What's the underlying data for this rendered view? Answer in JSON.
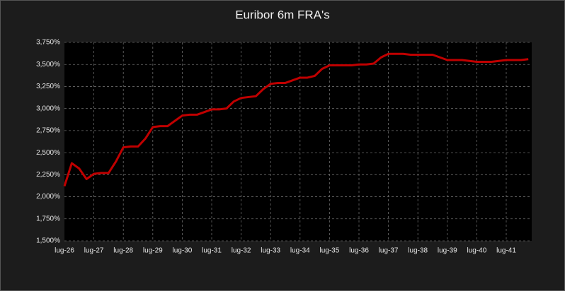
{
  "chart_data": {
    "type": "line",
    "title": "Euribor 6m FRA's",
    "categories": [
      "lug-26",
      null,
      null,
      null,
      "lug-27",
      null,
      null,
      null,
      "lug-28",
      null,
      null,
      null,
      "lug-29",
      null,
      null,
      null,
      "lug-30",
      null,
      null,
      null,
      "lug-31",
      null,
      null,
      null,
      "lug-32",
      null,
      null,
      null,
      "lug-33",
      null,
      null,
      null,
      "lug-34",
      null,
      null,
      null,
      "lug-35",
      null,
      null,
      null,
      "lug-36",
      null,
      null,
      null,
      "lug-37",
      null,
      null,
      null,
      "lug-38",
      null,
      null,
      null,
      "lug-39",
      null,
      null,
      null,
      "lug-40",
      null,
      null,
      null,
      "lug-41",
      null,
      null,
      null
    ],
    "values": [
      2.12,
      2.38,
      2.32,
      2.2,
      2.26,
      2.27,
      2.27,
      2.4,
      2.56,
      2.57,
      2.57,
      2.66,
      2.79,
      2.8,
      2.8,
      2.86,
      2.92,
      2.93,
      2.93,
      2.96,
      2.99,
      2.99,
      3.0,
      3.08,
      3.12,
      3.13,
      3.14,
      3.22,
      3.28,
      3.29,
      3.29,
      3.32,
      3.35,
      3.35,
      3.37,
      3.45,
      3.49,
      3.49,
      3.49,
      3.49,
      3.5,
      3.5,
      3.51,
      3.58,
      3.62,
      3.62,
      3.62,
      3.61,
      3.61,
      3.61,
      3.61,
      3.58,
      3.55,
      3.55,
      3.55,
      3.54,
      3.53,
      3.53,
      3.53,
      3.54,
      3.55,
      3.55,
      3.55,
      3.56
    ],
    "color": "#c00000",
    "ylim": [
      1.5,
      3.75
    ],
    "yticks": [
      {
        "value": 1.5,
        "label": "1,500%"
      },
      {
        "value": 1.75,
        "label": "1,750%"
      },
      {
        "value": 2.0,
        "label": "2,000%"
      },
      {
        "value": 2.25,
        "label": "2,250%"
      },
      {
        "value": 2.5,
        "label": "2,500%"
      },
      {
        "value": 2.75,
        "label": "2,750%"
      },
      {
        "value": 3.0,
        "label": "3,000%"
      },
      {
        "value": 3.25,
        "label": "3,250%"
      },
      {
        "value": 3.5,
        "label": "3,500%"
      },
      {
        "value": 3.75,
        "label": "3,750%"
      }
    ],
    "grid": true
  }
}
